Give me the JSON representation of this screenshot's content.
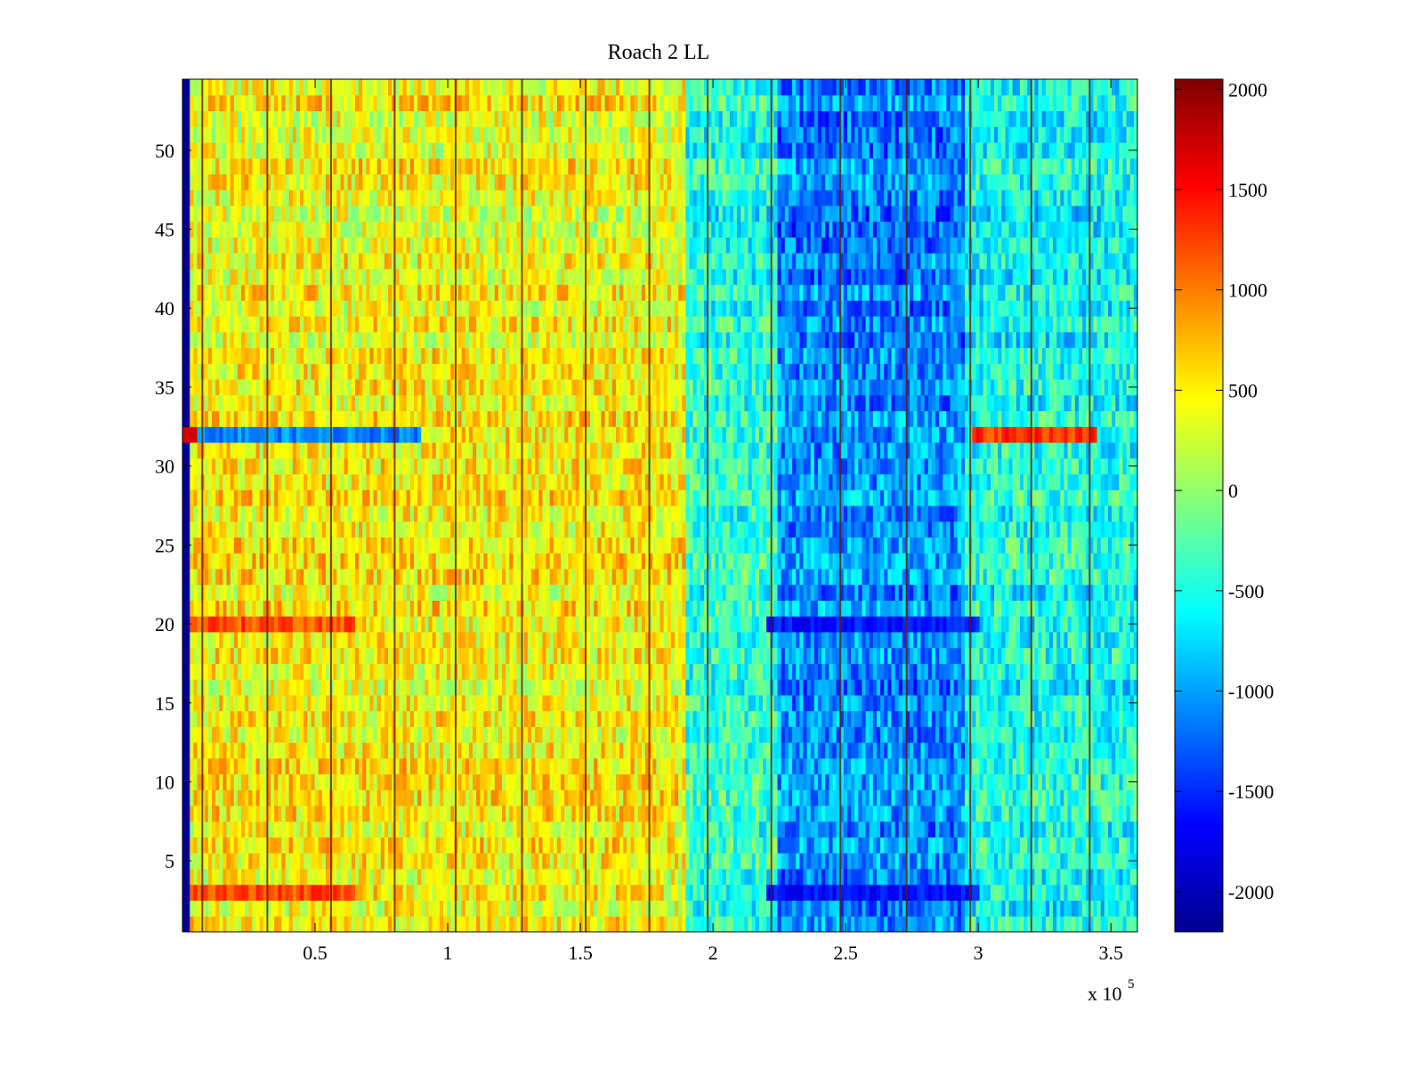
{
  "chart_data": {
    "type": "heatmap",
    "title": "Roach 2 LL",
    "xlabel": "",
    "ylabel": "",
    "x_multiplier_label": "x 10",
    "x_multiplier_exponent": "5",
    "xlim": [
      0,
      3.6
    ],
    "ylim": [
      0.5,
      54.5
    ],
    "xticks": [
      "0.5",
      "1",
      "1.5",
      "2",
      "2.5",
      "3",
      "3.5"
    ],
    "xtick_values": [
      0.5,
      1,
      1.5,
      2,
      2.5,
      3,
      3.5
    ],
    "yticks": [
      "5",
      "10",
      "15",
      "20",
      "25",
      "30",
      "35",
      "40",
      "45",
      "50"
    ],
    "ytick_values": [
      5,
      10,
      15,
      20,
      25,
      30,
      35,
      40,
      45,
      50
    ],
    "rows": 54,
    "colorbar": {
      "colormap": "jet",
      "range": [
        -2200,
        2050
      ],
      "ticks": [
        "2000",
        "1500",
        "1000",
        "500",
        "0",
        "-500",
        "-1000",
        "-1500",
        "-2000"
      ],
      "tick_values": [
        2000,
        1500,
        1000,
        500,
        0,
        -500,
        -1000,
        -1500,
        -2000
      ]
    },
    "region_means": [
      {
        "x_range": [
          0,
          0.03
        ],
        "value": -2100
      },
      {
        "x_range": [
          0.03,
          1.9
        ],
        "value": 450
      },
      {
        "x_range": [
          1.9,
          2.25
        ],
        "value": -450
      },
      {
        "x_range": [
          2.25,
          2.95
        ],
        "value": -1100
      },
      {
        "x_range": [
          2.95,
          3.6
        ],
        "value": -550
      }
    ],
    "notable_rows": [
      {
        "row": 32,
        "note": "strong contrast row: red at left edge and near x=3.0–3.4, blue across 0.1–0.9"
      },
      {
        "row": 20,
        "note": "elevated values (red) across 0.05–0.6"
      },
      {
        "row": 3,
        "note": "elevated values (red) across 0.05–0.7"
      }
    ],
    "vertical_stripe_positions": [
      0.075,
      0.32,
      0.56,
      0.8,
      1.03,
      1.28,
      1.52,
      1.76,
      1.98,
      2.22,
      2.48,
      2.73,
      2.97,
      3.2,
      3.42
    ]
  }
}
